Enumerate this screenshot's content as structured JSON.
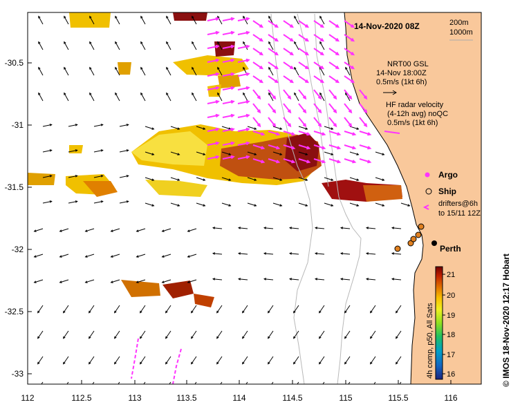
{
  "title": "14-Nov-2020 08Z",
  "depth_legend": [
    "200m",
    "1000m"
  ],
  "model_label": [
    "NRT00 GSL",
    "14-Nov 18:00Z",
    "0.5m/s (1kt 6h)"
  ],
  "radar_label": [
    "HF radar velocity",
    "(4-12h avg) noQC",
    "0.5m/s (1kt 6h)"
  ],
  "legend_items": {
    "argo": "Argo",
    "ship": "Ship",
    "drifters": [
      "drifters@6h",
      "to 15/11 12Z"
    ]
  },
  "city": "Perth",
  "colorbar": {
    "ticks": [
      "21",
      "20",
      "19",
      "18",
      "17",
      "16"
    ],
    "label": "4h comp, p50, All Sats"
  },
  "credit": "© IMOS 18-Nov-2020 12:17 Hobart",
  "axes": {
    "x_ticks": [
      "112",
      "112.5",
      "113",
      "113.5",
      "114",
      "114.5",
      "115",
      "115.5",
      "116"
    ],
    "y_ticks": [
      "-30.5",
      "-31",
      "-31.5",
      "-32",
      "-32.5",
      "-33"
    ]
  },
  "colors": {
    "land": "#f9c89b",
    "radar_arrows": "#ff33ff",
    "argo": "#ff33ff",
    "drifter_dots": "#e08020"
  }
}
